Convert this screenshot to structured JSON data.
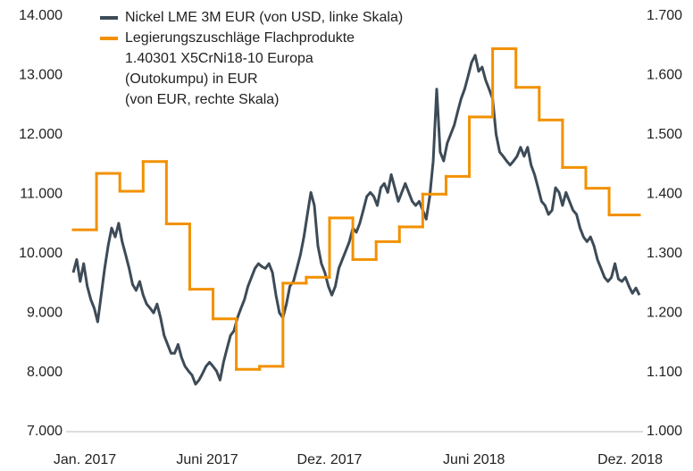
{
  "chart_data": {
    "type": "line",
    "xlim": [
      0,
      24.3
    ],
    "xticks": [
      {
        "value": 0.5,
        "label": "Jan. 2017"
      },
      {
        "value": 5.75,
        "label": "Juni 2017"
      },
      {
        "value": 11,
        "label": "Dez. 2017"
      },
      {
        "value": 17.2,
        "label": "Juni 2018"
      },
      {
        "value": 23.9,
        "label": "Dez. 2018"
      }
    ],
    "ylim": [
      7000,
      14000
    ],
    "yticks": [
      {
        "value": 7000,
        "label": "7.000"
      },
      {
        "value": 8000,
        "label": "8.000"
      },
      {
        "value": 9000,
        "label": "9.000"
      },
      {
        "value": 10000,
        "label": "10.000"
      },
      {
        "value": 11000,
        "label": "11.000"
      },
      {
        "value": 12000,
        "label": "12.000"
      },
      {
        "value": 13000,
        "label": "13.000"
      },
      {
        "value": 14000,
        "label": "14.000"
      }
    ],
    "y2lim": [
      1000,
      1700
    ],
    "y2ticks": [
      {
        "value": 1000,
        "label": "1.000"
      },
      {
        "value": 1100,
        "label": "1.100"
      },
      {
        "value": 1200,
        "label": "1.200"
      },
      {
        "value": 1300,
        "label": "1.300"
      },
      {
        "value": 1400,
        "label": "1.400"
      },
      {
        "value": 1500,
        "label": "1.500"
      },
      {
        "value": 1600,
        "label": "1.600"
      },
      {
        "value": 1700,
        "label": "1.700"
      }
    ],
    "grid": false,
    "legend": "top-left",
    "series": [
      {
        "name": "Nickel LME 3M EUR (von USD, linke Skala)",
        "color": "#3d4b57",
        "axis": "y",
        "x": [
          0,
          0.15,
          0.3,
          0.45,
          0.6,
          0.75,
          0.9,
          1.05,
          1.2,
          1.35,
          1.5,
          1.65,
          1.8,
          1.95,
          2.1,
          2.25,
          2.4,
          2.55,
          2.7,
          2.85,
          3,
          3.15,
          3.3,
          3.45,
          3.6,
          3.75,
          3.9,
          4.05,
          4.2,
          4.35,
          4.5,
          4.65,
          4.8,
          4.95,
          5.1,
          5.25,
          5.4,
          5.55,
          5.7,
          5.85,
          6,
          6.15,
          6.3,
          6.45,
          6.6,
          6.75,
          6.9,
          7.05,
          7.2,
          7.35,
          7.5,
          7.65,
          7.8,
          7.95,
          8.1,
          8.25,
          8.4,
          8.55,
          8.7,
          8.85,
          9,
          9.15,
          9.3,
          9.45,
          9.6,
          9.75,
          9.9,
          10.05,
          10.2,
          10.35,
          10.5,
          10.65,
          10.8,
          10.95,
          11.1,
          11.25,
          11.4,
          11.55,
          11.7,
          11.85,
          12,
          12.15,
          12.3,
          12.45,
          12.6,
          12.75,
          12.9,
          13.05,
          13.2,
          13.35,
          13.5,
          13.65,
          13.8,
          13.95,
          14.1,
          14.25,
          14.4,
          14.55,
          14.7,
          14.85,
          15,
          15.15,
          15.3,
          15.45,
          15.6,
          15.75,
          15.9,
          16.05,
          16.2,
          16.35,
          16.5,
          16.65,
          16.8,
          16.95,
          17.1,
          17.25,
          17.4,
          17.55,
          17.7,
          17.85,
          18,
          18.15,
          18.3,
          18.45,
          18.6,
          18.75,
          18.9,
          19.05,
          19.2,
          19.35,
          19.5,
          19.65,
          19.8,
          19.95,
          20.1,
          20.25,
          20.4,
          20.55,
          20.7,
          20.85,
          21,
          21.15,
          21.3,
          21.45,
          21.6,
          21.75,
          21.9,
          22.05,
          22.2,
          22.35,
          22.5,
          22.65,
          22.8,
          22.95,
          23.1,
          23.25,
          23.4,
          23.55,
          23.7,
          23.85,
          24,
          24.15,
          24.3
        ],
        "values": [
          9680,
          9900,
          9530,
          9830,
          9450,
          9230,
          9080,
          8850,
          9300,
          9750,
          10130,
          10430,
          10280,
          10510,
          10200,
          9980,
          9750,
          9480,
          9380,
          9530,
          9300,
          9150,
          9080,
          9000,
          9150,
          8920,
          8620,
          8470,
          8320,
          8320,
          8470,
          8250,
          8100,
          8020,
          7950,
          7800,
          7870,
          7980,
          8100,
          8170,
          8100,
          8020,
          7870,
          8170,
          8400,
          8620,
          8700,
          8920,
          9080,
          9230,
          9450,
          9600,
          9750,
          9830,
          9780,
          9750,
          9830,
          9680,
          9300,
          9000,
          8920,
          9150,
          9450,
          9530,
          9750,
          9980,
          10280,
          10660,
          11030,
          10810,
          10130,
          9830,
          9680,
          9450,
          9300,
          9450,
          9750,
          9900,
          10050,
          10200,
          10430,
          10360,
          10510,
          10730,
          10960,
          11030,
          10960,
          10810,
          11110,
          11180,
          11030,
          11330,
          11110,
          10880,
          11030,
          11180,
          11030,
          10880,
          10810,
          10880,
          10730,
          10580,
          10960,
          11560,
          12770,
          11710,
          11560,
          11860,
          12010,
          12160,
          12390,
          12610,
          12770,
          12990,
          13220,
          13340,
          13070,
          13140,
          12920,
          12770,
          12610,
          12010,
          11710,
          11640,
          11560,
          11490,
          11560,
          11640,
          11790,
          11640,
          11790,
          11490,
          11330,
          11110,
          10880,
          10810,
          10660,
          10730,
          11110,
          11030,
          10810,
          11030,
          10880,
          10730,
          10660,
          10430,
          10280,
          10200,
          10280,
          10130,
          9900,
          9750,
          9600,
          9530,
          9600,
          9830,
          9570,
          9530,
          9600,
          9450,
          9330,
          9420,
          9300
        ]
      },
      {
        "name": "Legierungszuschläge Flachprodukte\n1.40301 X5CrNi18-10 Europa\n(Outokumpu) in EUR\n(von EUR, rechte Skala)",
        "color": "#f29100",
        "axis": "y2",
        "step": true,
        "x": [
          0,
          1,
          2,
          3,
          4,
          5,
          6,
          7,
          8,
          9,
          10,
          11,
          12,
          13,
          14,
          15,
          16,
          17,
          18,
          19,
          20,
          21,
          22,
          23
        ],
        "values": [
          1340,
          1435,
          1405,
          1455,
          1350,
          1240,
          1190,
          1105,
          1110,
          1250,
          1260,
          1360,
          1290,
          1320,
          1345,
          1400,
          1430,
          1530,
          1645,
          1580,
          1525,
          1445,
          1410,
          1365
        ]
      }
    ]
  }
}
